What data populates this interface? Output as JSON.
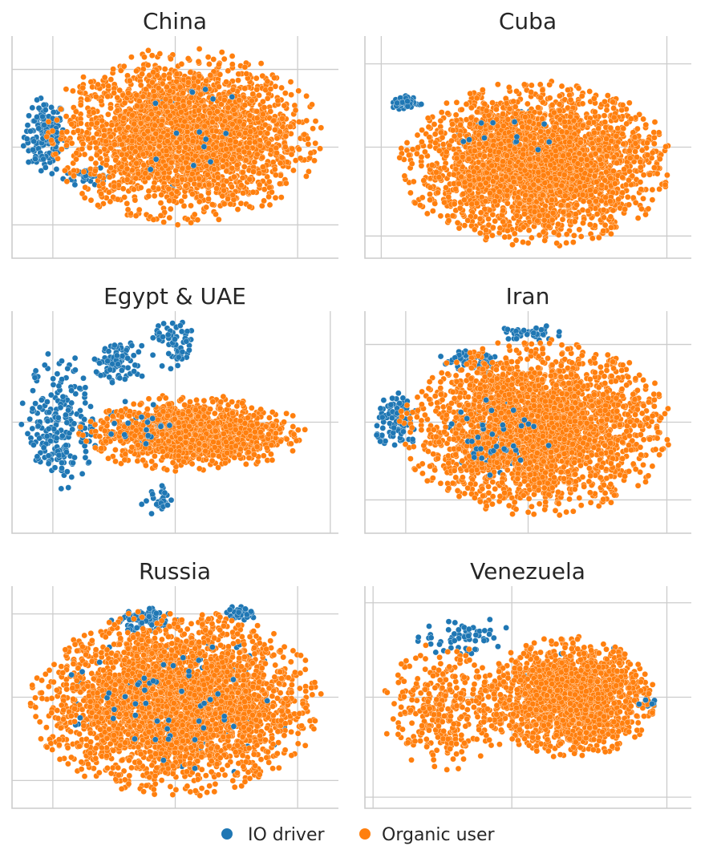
{
  "colors": {
    "io": "#1f77b4",
    "organic": "#ff7f0e",
    "grid": "#cccccc",
    "axis": "#cccccc",
    "title": "#262626"
  },
  "legend": {
    "io_label": "IO driver",
    "organic_label": "Organic user"
  },
  "chart_data": [
    {
      "type": "scatter",
      "title": "China",
      "xlim": [
        -100,
        100
      ],
      "ylim": [
        -100,
        100
      ],
      "xgrid": [
        -75,
        0,
        75
      ],
      "ygrid": [
        -70,
        0,
        70
      ],
      "organic": {
        "count": 2600,
        "cx": 5,
        "cy": 10,
        "rx": 85,
        "ry": 80
      },
      "io": [
        {
          "count": 150,
          "cx": -80,
          "cy": 10,
          "rx": 15,
          "ry": 40
        },
        {
          "count": 40,
          "cx": -55,
          "cy": -25,
          "rx": 15,
          "ry": 10
        },
        {
          "count": 30,
          "cx": -10,
          "cy": 35,
          "rx": 20,
          "ry": 20
        },
        {
          "count": 25,
          "cx": 10,
          "cy": 10,
          "rx": 45,
          "ry": 50
        }
      ]
    },
    {
      "type": "scatter",
      "title": "Cuba",
      "xlim": [
        -100,
        100
      ],
      "ylim": [
        -100,
        100
      ],
      "xgrid": [
        -90,
        85
      ],
      "ygrid": [
        -80,
        0,
        75
      ],
      "organic": {
        "count": 2900,
        "cx": 5,
        "cy": -15,
        "rx": 85,
        "ry": 75
      },
      "io": [
        {
          "count": 60,
          "cx": -75,
          "cy": 40,
          "rx": 10,
          "ry": 7
        },
        {
          "count": 20,
          "cx": -20,
          "cy": 10,
          "rx": 40,
          "ry": 30
        }
      ]
    },
    {
      "type": "scatter",
      "title": "Egypt & UAE",
      "xlim": [
        -100,
        100
      ],
      "ylim": [
        -100,
        100
      ],
      "xgrid": [
        -75,
        0,
        95
      ],
      "ygrid": [
        0
      ],
      "organic": {
        "count": 1200,
        "cx": 10,
        "cy": -10,
        "rx": 70,
        "ry": 35
      },
      "io": [
        {
          "count": 220,
          "cx": -70,
          "cy": 0,
          "rx": 25,
          "ry": 65
        },
        {
          "count": 90,
          "cx": -35,
          "cy": 55,
          "rx": 18,
          "ry": 25
        },
        {
          "count": 60,
          "cx": 0,
          "cy": 70,
          "rx": 15,
          "ry": 25
        },
        {
          "count": 25,
          "cx": -10,
          "cy": -70,
          "rx": 12,
          "ry": 15
        },
        {
          "count": 30,
          "cx": -20,
          "cy": -5,
          "rx": 25,
          "ry": 30
        }
      ]
    },
    {
      "type": "scatter",
      "title": "Iran",
      "xlim": [
        -100,
        100
      ],
      "ylim": [
        -100,
        100
      ],
      "xgrid": [
        -75,
        0,
        85
      ],
      "ygrid": [
        -70,
        0,
        70
      ],
      "organic": {
        "count": 2700,
        "cx": 5,
        "cy": -5,
        "rx": 85,
        "ry": 80
      },
      "io": [
        {
          "count": 90,
          "cx": -80,
          "cy": 0,
          "rx": 15,
          "ry": 30
        },
        {
          "count": 60,
          "cx": -35,
          "cy": 55,
          "rx": 25,
          "ry": 12
        },
        {
          "count": 40,
          "cx": 0,
          "cy": 80,
          "rx": 20,
          "ry": 8
        },
        {
          "count": 60,
          "cx": -20,
          "cy": -10,
          "rx": 35,
          "ry": 40
        }
      ]
    },
    {
      "type": "scatter",
      "title": "Russia",
      "xlim": [
        -100,
        100
      ],
      "ylim": [
        -100,
        100
      ],
      "xgrid": [
        -75,
        0,
        75
      ],
      "ygrid": [
        -75,
        0,
        75
      ],
      "organic": {
        "count": 3200,
        "cx": 0,
        "cy": -5,
        "rx": 90,
        "ry": 85
      },
      "io": [
        {
          "count": 80,
          "cx": -20,
          "cy": 70,
          "rx": 25,
          "ry": 12
        },
        {
          "count": 30,
          "cx": 40,
          "cy": 75,
          "rx": 12,
          "ry": 8
        },
        {
          "count": 80,
          "cx": 0,
          "cy": -5,
          "rx": 80,
          "ry": 70
        }
      ]
    },
    {
      "type": "scatter",
      "title": "Venezuela",
      "xlim": [
        -100,
        100
      ],
      "ylim": [
        -100,
        100
      ],
      "xgrid": [
        -95,
        -10,
        85
      ],
      "ygrid": [
        -90,
        0,
        85
      ],
      "organic": {
        "count": 1700,
        "cx": 25,
        "cy": 0,
        "rx": 55,
        "ry": 55
      },
      "organic2": {
        "count": 350,
        "cx": -50,
        "cy": -10,
        "rx": 40,
        "ry": 60
      },
      "io": [
        {
          "count": 60,
          "cx": -40,
          "cy": 55,
          "rx": 30,
          "ry": 20
        },
        {
          "count": 25,
          "cx": 30,
          "cy": 15,
          "rx": 40,
          "ry": 40
        },
        {
          "count": 8,
          "cx": 75,
          "cy": -5,
          "rx": 8,
          "ry": 5
        }
      ]
    }
  ]
}
